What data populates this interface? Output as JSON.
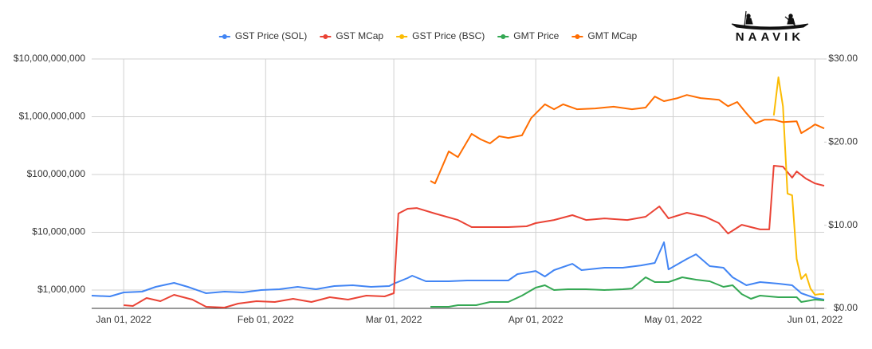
{
  "logo": "NAAVIK",
  "chart_data": {
    "type": "line",
    "log_scale_y": true,
    "grid": true,
    "legend": "top",
    "xlim": [
      "2021-12-25",
      "2022-06-03"
    ],
    "xticks": [
      {
        "value": "2022-01-01",
        "label": "Jan 01, 2022"
      },
      {
        "value": "2022-02-01",
        "label": "Feb 01, 2022"
      },
      {
        "value": "2022-03-01",
        "label": "Mar 01, 2022"
      },
      {
        "value": "2022-04-01",
        "label": "Apr 01, 2022"
      },
      {
        "value": "2022-05-01",
        "label": "May 01, 2022"
      },
      {
        "value": "2022-06-01",
        "label": "Jun 01, 2022"
      }
    ],
    "ylim": [
      482000,
      10000000000
    ],
    "yticks": [
      {
        "value": 1000000,
        "label": "$1,000,000"
      },
      {
        "value": 10000000,
        "label": "$10,000,000"
      },
      {
        "value": 100000000,
        "label": "$100,000,000"
      },
      {
        "value": 1000000000,
        "label": "$1,000,000,000"
      },
      {
        "value": 10000000000,
        "label": "$10,000,000,000"
      }
    ],
    "y2lim": [
      0,
      30
    ],
    "y2ticks": [
      {
        "value": 0,
        "label": "$0.00"
      },
      {
        "value": 10,
        "label": "$10.00"
      },
      {
        "value": 20,
        "label": "$20.00"
      },
      {
        "value": 30,
        "label": "$30.00"
      }
    ],
    "series": [
      {
        "name": "GST Price (SOL)",
        "color": "#4285f4",
        "axis": "y2",
        "x": [
          "2021-12-25",
          "2021-12-29",
          "2022-01-01",
          "2022-01-05",
          "2022-01-08",
          "2022-01-12",
          "2022-01-15",
          "2022-01-19",
          "2022-01-23",
          "2022-01-27",
          "2022-01-31",
          "2022-02-04",
          "2022-02-08",
          "2022-02-12",
          "2022-02-16",
          "2022-02-20",
          "2022-02-24",
          "2022-02-28",
          "2022-03-01",
          "2022-03-04",
          "2022-03-05",
          "2022-03-08",
          "2022-03-13",
          "2022-03-17",
          "2022-03-22",
          "2022-03-26",
          "2022-03-28",
          "2022-04-01",
          "2022-04-03",
          "2022-04-05",
          "2022-04-09",
          "2022-04-11",
          "2022-04-16",
          "2022-04-20",
          "2022-04-24",
          "2022-04-27",
          "2022-04-29",
          "2022-04-30",
          "2022-05-04",
          "2022-05-06",
          "2022-05-09",
          "2022-05-12",
          "2022-05-14",
          "2022-05-17",
          "2022-05-20",
          "2022-05-24",
          "2022-05-27",
          "2022-05-29",
          "2022-06-01",
          "2022-06-03"
        ],
        "values": [
          1.53,
          1.44,
          1.92,
          2.01,
          2.59,
          3.07,
          2.59,
          1.82,
          2.01,
          1.92,
          2.2,
          2.3,
          2.59,
          2.3,
          2.68,
          2.78,
          2.59,
          2.68,
          2.97,
          3.64,
          3.93,
          3.26,
          3.26,
          3.35,
          3.35,
          3.35,
          4.12,
          4.5,
          3.83,
          4.6,
          5.36,
          4.6,
          4.89,
          4.89,
          5.17,
          5.46,
          7.95,
          4.69,
          5.94,
          6.51,
          5.08,
          4.89,
          3.74,
          2.78,
          3.16,
          2.97,
          2.78,
          1.82,
          1.25,
          1.05
        ]
      },
      {
        "name": "GST MCap",
        "color": "#ea4335",
        "axis": "y",
        "x": [
          "2022-01-01",
          "2022-01-03",
          "2022-01-06",
          "2022-01-09",
          "2022-01-12",
          "2022-01-16",
          "2022-01-19",
          "2022-01-23",
          "2022-01-26",
          "2022-01-30",
          "2022-02-03",
          "2022-02-07",
          "2022-02-11",
          "2022-02-15",
          "2022-02-19",
          "2022-02-23",
          "2022-02-27",
          "2022-03-01",
          "2022-03-02",
          "2022-03-04",
          "2022-03-06",
          "2022-03-10",
          "2022-03-15",
          "2022-03-18",
          "2022-03-22",
          "2022-03-26",
          "2022-03-30",
          "2022-04-01",
          "2022-04-05",
          "2022-04-09",
          "2022-04-12",
          "2022-04-16",
          "2022-04-21",
          "2022-04-25",
          "2022-04-28",
          "2022-04-30",
          "2022-05-04",
          "2022-05-08",
          "2022-05-11",
          "2022-05-13",
          "2022-05-16",
          "2022-05-20",
          "2022-05-22",
          "2022-05-23",
          "2022-05-25",
          "2022-05-27",
          "2022-05-28",
          "2022-05-30",
          "2022-06-01",
          "2022-06-03"
        ],
        "values": [
          547000,
          530000,
          728000,
          641000,
          826000,
          683000,
          513000,
          497000,
          583000,
          641000,
          621000,
          705000,
          621000,
          751000,
          683000,
          801000,
          776000,
          881000,
          21100000,
          25500000,
          26300000,
          21100000,
          16300000,
          12300000,
          12300000,
          12300000,
          12700000,
          14400000,
          16300000,
          19800000,
          16300000,
          17400000,
          16300000,
          18600000,
          28100000,
          17400000,
          21800000,
          18600000,
          14400000,
          9500000,
          13500000,
          11200000,
          11200000,
          142000000,
          137000000,
          88000000,
          113000000,
          85000000,
          70000000,
          64000000
        ]
      },
      {
        "name": "GST Price (BSC)",
        "color": "#fbbc04",
        "axis": "y2",
        "x": [
          "2022-05-23",
          "2022-05-24",
          "2022-05-25",
          "2022-05-26",
          "2022-05-27",
          "2022-05-28",
          "2022-05-29",
          "2022-05-30",
          "2022-05-31",
          "2022-06-01",
          "2022-06-02",
          "2022-06-03"
        ],
        "values": [
          23.2,
          27.8,
          24.3,
          13.8,
          13.6,
          5.94,
          3.54,
          4.12,
          2.39,
          1.63,
          1.72,
          1.72
        ]
      },
      {
        "name": "GMT Price",
        "color": "#34a853",
        "axis": "y2",
        "x": [
          "2022-03-09",
          "2022-03-13",
          "2022-03-15",
          "2022-03-19",
          "2022-03-22",
          "2022-03-26",
          "2022-03-29",
          "2022-04-01",
          "2022-04-03",
          "2022-04-05",
          "2022-04-08",
          "2022-04-12",
          "2022-04-16",
          "2022-04-20",
          "2022-04-22",
          "2022-04-25",
          "2022-04-27",
          "2022-04-30",
          "2022-05-03",
          "2022-05-06",
          "2022-05-09",
          "2022-05-12",
          "2022-05-14",
          "2022-05-16",
          "2022-05-18",
          "2022-05-20",
          "2022-05-24",
          "2022-05-28",
          "2022-05-29",
          "2022-06-01",
          "2022-06-03"
        ],
        "values": [
          0.19,
          0.19,
          0.38,
          0.38,
          0.77,
          0.77,
          1.53,
          2.49,
          2.78,
          2.2,
          2.3,
          2.3,
          2.2,
          2.3,
          2.39,
          3.74,
          3.16,
          3.16,
          3.74,
          3.45,
          3.26,
          2.59,
          2.78,
          1.72,
          1.15,
          1.53,
          1.34,
          1.34,
          0.77,
          1.05,
          0.96
        ]
      },
      {
        "name": "GMT MCap",
        "color": "#ff6d01",
        "axis": "y",
        "x": [
          "2022-03-09",
          "2022-03-10",
          "2022-03-13",
          "2022-03-15",
          "2022-03-18",
          "2022-03-20",
          "2022-03-22",
          "2022-03-24",
          "2022-03-26",
          "2022-03-29",
          "2022-03-31",
          "2022-04-03",
          "2022-04-05",
          "2022-04-07",
          "2022-04-10",
          "2022-04-14",
          "2022-04-18",
          "2022-04-22",
          "2022-04-25",
          "2022-04-27",
          "2022-04-29",
          "2022-05-02",
          "2022-05-04",
          "2022-05-07",
          "2022-05-11",
          "2022-05-13",
          "2022-05-15",
          "2022-05-17",
          "2022-05-19",
          "2022-05-21",
          "2022-05-23",
          "2022-05-25",
          "2022-05-28",
          "2022-05-29",
          "2022-05-31",
          "2022-06-01",
          "2022-06-03"
        ],
        "values": [
          77600000,
          70000000,
          251000000,
          200000000,
          505000000,
          405000000,
          346000000,
          459000000,
          430000000,
          475000000,
          947000000,
          1640000000,
          1350000000,
          1640000000,
          1350000000,
          1390000000,
          1490000000,
          1350000000,
          1440000000,
          2240000000,
          1860000000,
          2100000000,
          2380000000,
          2100000000,
          1970000000,
          1520000000,
          1800000000,
          1150000000,
          766000000,
          888000000,
          888000000,
          806000000,
          834000000,
          520000000,
          650000000,
          738000000,
          628000000
        ]
      }
    ]
  }
}
